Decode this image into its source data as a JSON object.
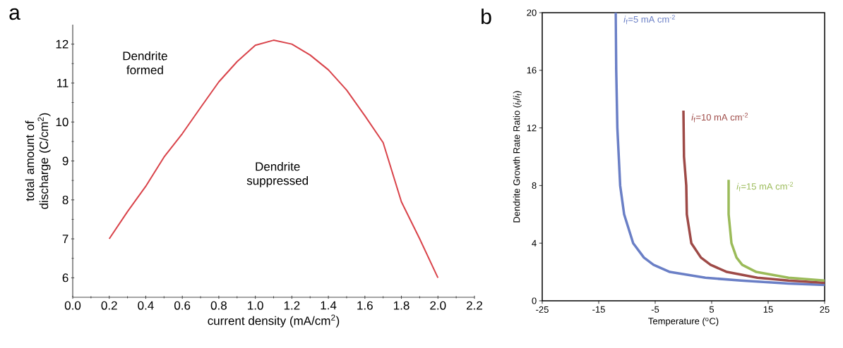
{
  "chart_data": [
    {
      "type": "line",
      "title": "a",
      "xlabel": "current density (mA/cm$^{2}$)",
      "ylabel": "total amount of discharge (C/cm$^{2}$)",
      "xlim": [
        0,
        2.2
      ],
      "ylim": [
        5.5,
        12.5
      ],
      "xticks": [
        {
          "value": 0,
          "label": "0.0"
        },
        {
          "value": 0.2,
          "label": "0.2"
        },
        {
          "value": 0.4,
          "label": "0.4"
        },
        {
          "value": 0.6,
          "label": "0.6"
        },
        {
          "value": 0.8,
          "label": "0.8"
        },
        {
          "value": 1.0,
          "label": "1.0"
        },
        {
          "value": 1.2,
          "label": "1.2"
        },
        {
          "value": 1.4,
          "label": "1.4"
        },
        {
          "value": 1.6,
          "label": "1.6"
        },
        {
          "value": 1.8,
          "label": "1.8"
        },
        {
          "value": 2.0,
          "label": "2.0"
        },
        {
          "value": 2.2,
          "label": "2.2"
        }
      ],
      "yticks": [
        6,
        7,
        8,
        9,
        10,
        11,
        12
      ],
      "x": [
        0.2,
        0.3,
        0.4,
        0.5,
        0.6,
        0.7,
        0.8,
        0.9,
        1.0,
        1.1,
        1.2,
        1.3,
        1.4,
        1.5,
        1.6,
        1.7,
        1.8,
        1.9,
        2.0
      ],
      "series": [
        {
          "color": "#d9434a",
          "values": [
            7.0,
            7.7,
            8.35,
            9.1,
            9.7,
            10.37,
            11.03,
            11.55,
            11.97,
            12.1,
            12.0,
            11.72,
            11.34,
            10.82,
            10.16,
            9.47,
            7.95,
            7.0,
            6.0
          ]
        }
      ],
      "annotations": [
        "Dendrite formed",
        "Dendrite suppressed"
      ]
    },
    {
      "type": "line",
      "title": "b",
      "xlabel": "Temperature ($^{o}$C)",
      "ylabel": "Dendrite Growth Rate Ratio (*i*$_{t}$/*i*$_{f}$)",
      "xlim": [
        -25,
        25
      ],
      "ylim": [
        0,
        20
      ],
      "xticks": [
        -25,
        -15,
        -5,
        5,
        15,
        25
      ],
      "yticks": [
        0,
        4,
        8,
        12,
        16,
        20
      ],
      "series": [
        {
          "name": "*i*$_{f}$=5 mA cm$^{-2}$",
          "color": "#6a7fc6",
          "x": [
            -12,
            -11.9,
            -11.7,
            -11.2,
            -10.5,
            -8.9,
            -7.0,
            -5.3,
            -2.4,
            3.9,
            10.2,
            18.6,
            25
          ],
          "values": [
            20,
            16,
            12,
            8,
            6,
            4,
            3,
            2.5,
            2,
            1.6,
            1.4,
            1.2,
            1.1
          ]
        },
        {
          "name": "*i*$_{f}$=10 mA cm$^{-2}$",
          "color": "#9e4a47",
          "x": [
            0,
            0.1,
            0.5,
            0.6,
            1.4,
            3.1,
            4.8,
            7.7,
            13.1,
            18.6,
            25
          ],
          "values": [
            13.2,
            10,
            8,
            6,
            4,
            3,
            2.5,
            2,
            1.6,
            1.4,
            1.25
          ]
        },
        {
          "name": "*i*$_{f}$=15 mA cm$^{-2}$",
          "color": "#9bbb59",
          "x": [
            8,
            8.0,
            8.5,
            9.4,
            10.4,
            12.9,
            18.6,
            25
          ],
          "values": [
            8.4,
            6,
            4,
            3,
            2.5,
            2,
            1.6,
            1.4
          ]
        }
      ]
    }
  ]
}
